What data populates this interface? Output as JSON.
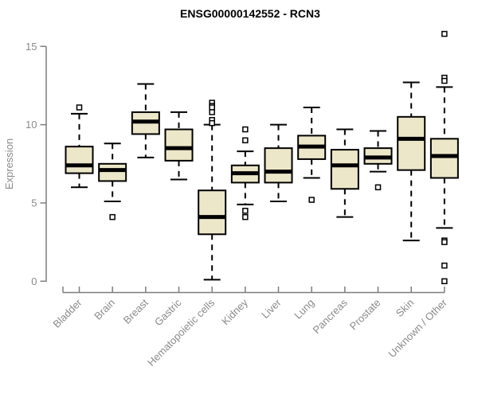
{
  "title": "ENSG00000142552 - RCN3",
  "colors": {
    "box_fill": "#EDE7C9",
    "box_border": "#000000",
    "median": "#000000",
    "whisker": "#000000",
    "outlier_stroke": "#000000",
    "outlier_fill": "#ffffff",
    "axis_line": "#7d7d7d",
    "axis_text": "#8a8a8a",
    "title_color": "#000000",
    "background": "#ffffff"
  },
  "chart_data": {
    "type": "boxplot",
    "title": "ENSG00000142552 - RCN3",
    "xlabel": "",
    "ylabel": "Expression",
    "ylim": [
      0,
      15
    ],
    "yticks": [
      0,
      5,
      10,
      15
    ],
    "grid": false,
    "x_label_rotation_deg": 45,
    "categories": [
      "Bladder",
      "Brain",
      "Breast",
      "Gastric",
      "Hematopoietic cells",
      "Kidney",
      "Liver",
      "Lung",
      "Pancreas",
      "Prostate",
      "Skin",
      "Unknown / Other"
    ],
    "series": [
      {
        "name": "Bladder",
        "whisker_low": 6.0,
        "q1": 6.9,
        "median": 7.4,
        "q3": 8.6,
        "whisker_high": 10.7,
        "outliers": [
          11.1
        ]
      },
      {
        "name": "Brain",
        "whisker_low": 5.1,
        "q1": 6.4,
        "median": 7.1,
        "q3": 7.5,
        "whisker_high": 8.8,
        "outliers": [
          4.1
        ]
      },
      {
        "name": "Breast",
        "whisker_low": 7.9,
        "q1": 9.4,
        "median": 10.2,
        "q3": 10.8,
        "whisker_high": 12.6,
        "outliers": []
      },
      {
        "name": "Gastric",
        "whisker_low": 6.5,
        "q1": 7.7,
        "median": 8.5,
        "q3": 9.7,
        "whisker_high": 10.8,
        "outliers": []
      },
      {
        "name": "Hematopoietic cells",
        "whisker_low": 0.1,
        "q1": 3.0,
        "median": 4.1,
        "q3": 5.8,
        "whisker_high": 10.0,
        "outliers": [
          11.4,
          11.2,
          11.1,
          10.8,
          10.3,
          10.1
        ]
      },
      {
        "name": "Kidney",
        "whisker_low": 4.9,
        "q1": 6.3,
        "median": 6.9,
        "q3": 7.4,
        "whisker_high": 8.3,
        "outliers": [
          9.7,
          9.0,
          4.5,
          4.1
        ]
      },
      {
        "name": "Liver",
        "whisker_low": 5.1,
        "q1": 6.3,
        "median": 7.0,
        "q3": 8.5,
        "whisker_high": 10.0,
        "outliers": []
      },
      {
        "name": "Lung",
        "whisker_low": 6.6,
        "q1": 7.8,
        "median": 8.6,
        "q3": 9.3,
        "whisker_high": 11.1,
        "outliers": [
          5.2
        ]
      },
      {
        "name": "Pancreas",
        "whisker_low": 4.1,
        "q1": 5.9,
        "median": 7.4,
        "q3": 8.4,
        "whisker_high": 9.7,
        "outliers": []
      },
      {
        "name": "Prostate",
        "whisker_low": 7.0,
        "q1": 7.5,
        "median": 7.9,
        "q3": 8.5,
        "whisker_high": 9.6,
        "outliers": [
          6.0
        ]
      },
      {
        "name": "Skin",
        "whisker_low": 2.6,
        "q1": 7.1,
        "median": 9.1,
        "q3": 10.5,
        "whisker_high": 12.7,
        "outliers": []
      },
      {
        "name": "Unknown / Other",
        "whisker_low": 3.4,
        "q1": 6.6,
        "median": 8.0,
        "q3": 9.1,
        "whisker_high": 12.4,
        "outliers": [
          15.8,
          13.0,
          12.8,
          2.6,
          2.5,
          1.0,
          0.0
        ]
      }
    ]
  }
}
